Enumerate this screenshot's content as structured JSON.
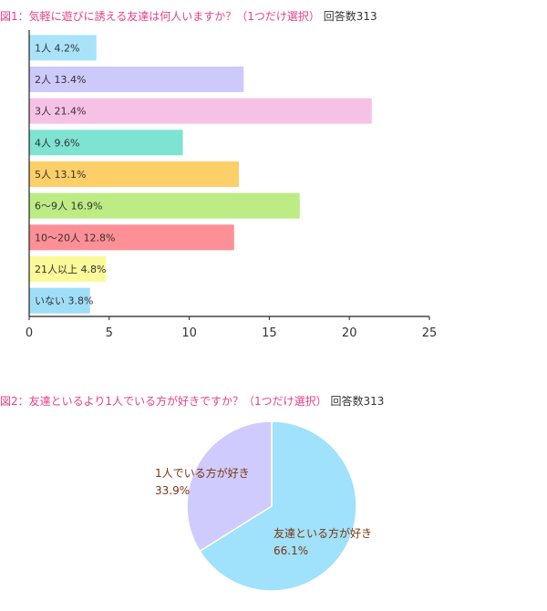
{
  "chart1": {
    "title_prefix": "図1：",
    "title_question": "気軽に遊びに誘える友達は何人いますか？（1つだけ選択）",
    "title_count": "回答数313"
  },
  "chart2": {
    "title_prefix": "図2：",
    "title_question": "友達といるより1人でいる方が好きですか？（1つだけ選択）",
    "title_count": "回答数313"
  },
  "chart_data": [
    {
      "type": "bar",
      "orientation": "horizontal",
      "title": "図1：気軽に遊びに誘える友達は何人いますか？（1つだけ選択） 回答数313",
      "categories": [
        "1人",
        "2人",
        "3人",
        "4人",
        "5人",
        "6〜9人",
        "10〜20人",
        "21人以上",
        "いない"
      ],
      "values": [
        4.2,
        13.4,
        21.4,
        9.6,
        13.1,
        16.9,
        12.8,
        4.8,
        3.8
      ],
      "bar_labels": [
        "1人 4.2%",
        "2人 13.4%",
        "3人 21.4%",
        "4人 9.6%",
        "5人 13.1%",
        "6〜9人 16.9%",
        "10〜20人 12.8%",
        "21人以上 4.8%",
        "いない 3.8%"
      ],
      "colors": [
        "#a9e3f9",
        "#cdc9fb",
        "#f7c1e6",
        "#7fe3d2",
        "#fccf68",
        "#bdec85",
        "#fd8f96",
        "#fbfa9a",
        "#9fdef7"
      ],
      "xlim": [
        0,
        25
      ],
      "xticks": [
        "0",
        "5",
        "10",
        "15",
        "20",
        "25"
      ],
      "grid": false
    },
    {
      "type": "pie",
      "title": "図2：友達といるより1人でいる方が好きですか？（1つだけ選択） 回答数313",
      "slices": [
        {
          "name": "友達といる方が好き",
          "value": 66.1,
          "label": "66.1%",
          "color": "#a0e1fb"
        },
        {
          "name": "1人でいる方が好き",
          "value": 33.9,
          "label": "33.9%",
          "color": "#cfcbfc"
        }
      ]
    }
  ]
}
